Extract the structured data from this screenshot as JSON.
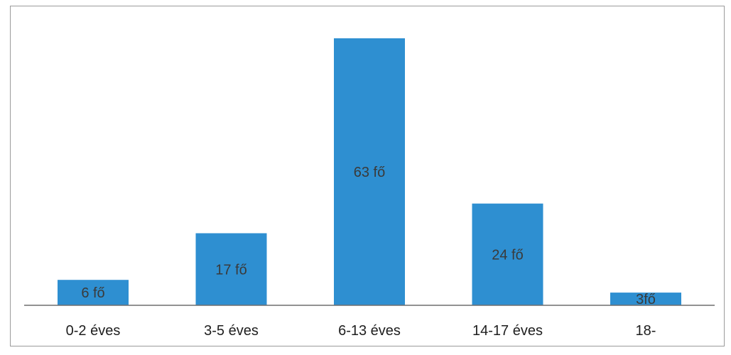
{
  "chart_data": {
    "type": "bar",
    "categories": [
      "0-2 éves",
      "3-5 éves",
      "6-13 éves",
      "14-17 éves",
      "18-"
    ],
    "values": [
      6,
      17,
      63,
      24,
      3
    ],
    "data_labels": [
      "6 fő",
      "17 fő",
      "63 fő",
      "24 fő",
      "3fő"
    ],
    "title": "",
    "xlabel": "",
    "ylabel": "",
    "ylim": [
      0,
      67
    ],
    "grid": false,
    "legend": "none",
    "bar_color": "#2e8fd1",
    "axis_color": "#6f6f6f"
  }
}
